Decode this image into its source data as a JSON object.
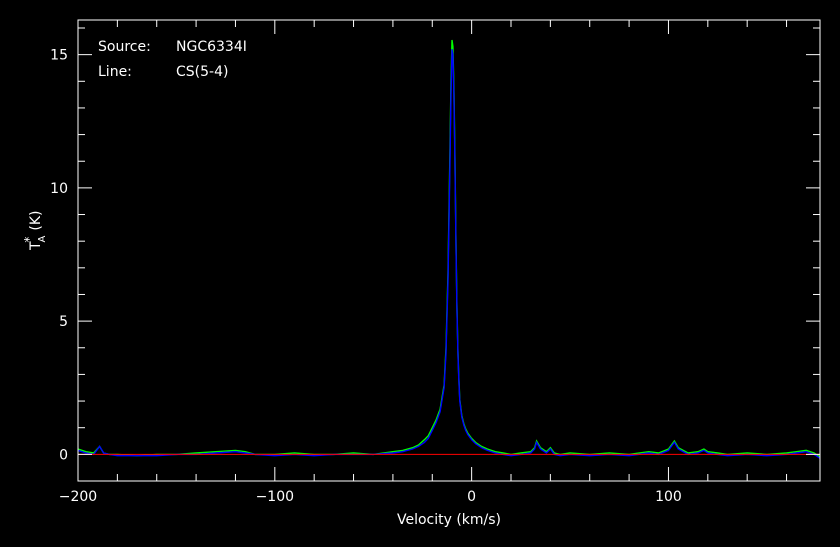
{
  "chart_data": {
    "type": "line",
    "annotations": [
      {
        "key": "Source:",
        "value": "NGC6334I"
      },
      {
        "key": "Line:",
        "value": "CS(5-4)"
      }
    ],
    "xlabel": "Velocity (km/s)",
    "ylabel": "T",
    "ylabel_sub": "A",
    "ylabel_sup": "*",
    "ylabel_unit": "(K)",
    "xlim": [
      -200,
      177
    ],
    "ylim": [
      -1.0,
      16.3
    ],
    "x_ticks": [
      {
        "v": -200,
        "label": "−200"
      },
      {
        "v": -100,
        "label": "−100"
      },
      {
        "v": 0,
        "label": "0"
      },
      {
        "v": 100,
        "label": "100"
      }
    ],
    "y_ticks": [
      {
        "v": 0,
        "label": "0"
      },
      {
        "v": 5,
        "label": "5"
      },
      {
        "v": 10,
        "label": "10"
      },
      {
        "v": 15,
        "label": "15"
      }
    ],
    "baseline": {
      "y": 0,
      "color": "#ff0000"
    },
    "colors": {
      "background": "#000000",
      "axes": "#ffffff",
      "primary": "#0000ff",
      "secondary": "#00ff00"
    },
    "series": [
      {
        "color": "#0000ff",
        "x": [
          -200,
          -196,
          -192,
          -189,
          -187,
          -184,
          -180,
          -170,
          -160,
          -150,
          -140,
          -130,
          -120,
          -115,
          -110,
          -100,
          -90,
          -80,
          -70,
          -60,
          -50,
          -40,
          -35,
          -30,
          -27,
          -24,
          -22,
          -20,
          -18,
          -16,
          -14,
          -13,
          -12,
          -11,
          -10.5,
          -10,
          -9.5,
          -9,
          -8.5,
          -8,
          -7.5,
          -7,
          -6.5,
          -6,
          -5,
          -4,
          -3,
          -2,
          0,
          2,
          5,
          8,
          12,
          16,
          20,
          25,
          30,
          32,
          33,
          35,
          38,
          40,
          42,
          45,
          50,
          60,
          70,
          80,
          90,
          95,
          100,
          102,
          103,
          105,
          110,
          115,
          118,
          120,
          125,
          130,
          140,
          150,
          160,
          165,
          170,
          174,
          177
        ],
        "y": [
          0.15,
          0.05,
          0.0,
          0.3,
          0.05,
          0.0,
          -0.05,
          -0.05,
          -0.05,
          0.0,
          0.0,
          0.05,
          0.1,
          0.05,
          0.0,
          -0.05,
          0.0,
          -0.05,
          0.0,
          0.0,
          0.0,
          0.05,
          0.1,
          0.2,
          0.3,
          0.45,
          0.6,
          0.9,
          1.2,
          1.6,
          2.5,
          3.8,
          6.5,
          11.0,
          13.5,
          15.2,
          15.0,
          13.5,
          11.0,
          8.0,
          5.5,
          3.8,
          2.8,
          2.0,
          1.4,
          1.1,
          0.9,
          0.75,
          0.55,
          0.4,
          0.25,
          0.15,
          0.05,
          0.0,
          -0.05,
          0.0,
          0.05,
          0.2,
          0.45,
          0.2,
          0.05,
          0.2,
          0.0,
          -0.05,
          0.0,
          -0.05,
          0.0,
          -0.05,
          0.05,
          0.0,
          0.15,
          0.35,
          0.45,
          0.2,
          0.0,
          0.05,
          0.15,
          0.05,
          0.0,
          -0.05,
          0.0,
          -0.05,
          0.0,
          0.05,
          0.1,
          0.0,
          -0.15
        ]
      },
      {
        "color": "#00ff00",
        "x": [
          -200,
          -196,
          -192,
          -189,
          -187,
          -184,
          -180,
          -170,
          -160,
          -150,
          -140,
          -130,
          -120,
          -115,
          -110,
          -100,
          -90,
          -80,
          -70,
          -60,
          -50,
          -40,
          -35,
          -30,
          -27,
          -24,
          -22,
          -20,
          -18,
          -16,
          -14,
          -13,
          -12,
          -11,
          -10.5,
          -10,
          -9.5,
          -9,
          -8.5,
          -8,
          -7.5,
          -7,
          -6.5,
          -6,
          -5,
          -4,
          -3,
          -2,
          0,
          2,
          5,
          8,
          12,
          16,
          20,
          25,
          30,
          32,
          33,
          35,
          38,
          40,
          42,
          45,
          50,
          60,
          70,
          80,
          90,
          95,
          100,
          102,
          103,
          105,
          110,
          115,
          118,
          120,
          125,
          130,
          140,
          150,
          160,
          165,
          170,
          174,
          177
        ],
        "y": [
          0.2,
          0.1,
          0.05,
          0.3,
          0.05,
          0.0,
          0.0,
          -0.05,
          0.0,
          0.0,
          0.05,
          0.1,
          0.15,
          0.1,
          0.0,
          0.0,
          0.05,
          0.0,
          0.0,
          0.05,
          0.0,
          0.1,
          0.15,
          0.25,
          0.35,
          0.55,
          0.7,
          1.0,
          1.3,
          1.7,
          2.6,
          4.0,
          6.8,
          11.5,
          14.0,
          15.55,
          15.3,
          13.8,
          11.3,
          8.2,
          5.6,
          3.9,
          2.9,
          2.05,
          1.45,
          1.15,
          0.95,
          0.8,
          0.6,
          0.45,
          0.3,
          0.2,
          0.1,
          0.05,
          0.0,
          0.05,
          0.1,
          0.25,
          0.5,
          0.25,
          0.1,
          0.25,
          0.05,
          0.0,
          0.05,
          0.0,
          0.05,
          0.0,
          0.1,
          0.05,
          0.2,
          0.4,
          0.5,
          0.25,
          0.05,
          0.1,
          0.2,
          0.1,
          0.05,
          0.0,
          0.05,
          0.0,
          0.05,
          0.1,
          0.15,
          0.05,
          -0.1
        ]
      }
    ]
  }
}
